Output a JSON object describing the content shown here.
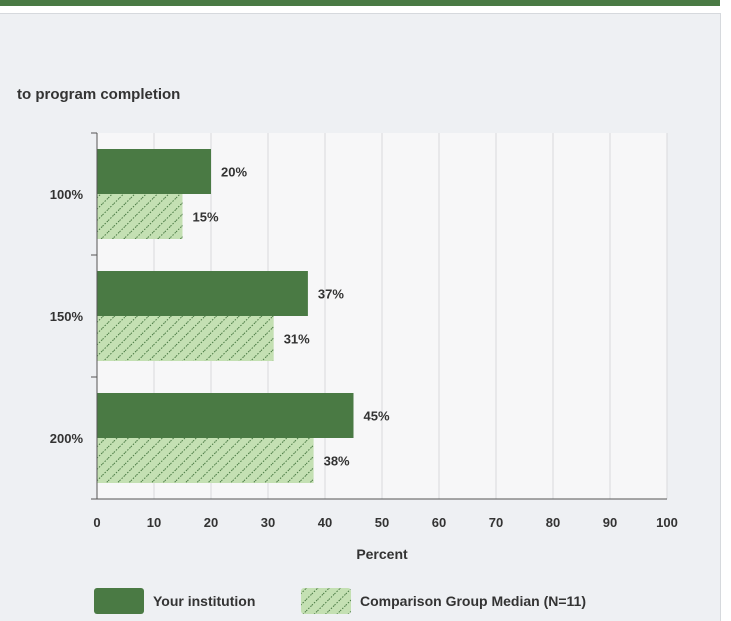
{
  "chart_data": {
    "type": "bar",
    "orientation": "horizontal",
    "title": "to program completion",
    "categories": [
      "100%",
      "150%",
      "200%"
    ],
    "series": [
      {
        "name": "Your institution",
        "values": [
          20,
          37,
          45
        ],
        "color": "#4a7a44",
        "pattern": "solid"
      },
      {
        "name": "Comparison Group Median (N=11)",
        "values": [
          15,
          31,
          38
        ],
        "color": "#c4e0b3",
        "pattern": "hatched"
      }
    ],
    "data_labels": [
      [
        "20%",
        "37%",
        "45%"
      ],
      [
        "15%",
        "31%",
        "38%"
      ]
    ],
    "xlabel": "Percent",
    "ylabel": "",
    "xlim": [
      0,
      100
    ],
    "xticks": [
      0,
      10,
      20,
      30,
      40,
      50,
      60,
      70,
      80,
      90,
      100
    ],
    "grid": "vertical",
    "legend_position": "bottom"
  }
}
